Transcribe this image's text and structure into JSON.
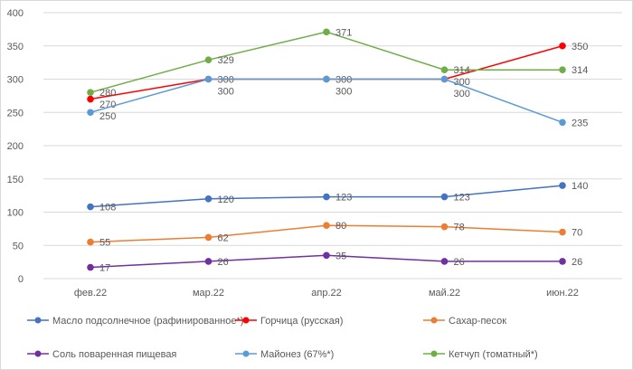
{
  "chart_data": {
    "type": "line",
    "title": "",
    "xlabel": "",
    "ylabel": "",
    "categories": [
      "фев.22",
      "мар.22",
      "апр.22",
      "май.22",
      "июн.22"
    ],
    "ylim": [
      0,
      400
    ],
    "yticks": [
      0,
      50,
      100,
      150,
      200,
      250,
      300,
      350,
      400
    ],
    "grid": true,
    "legend_position": "bottom",
    "series": [
      {
        "name": "Масло подсолнечное (рафинированное*)",
        "color": "#4472c4",
        "values": [
          108,
          120,
          123,
          123,
          140
        ]
      },
      {
        "name": "Горчица (русская)",
        "color": "#ff0000",
        "values": [
          270,
          300,
          300,
          300,
          350
        ]
      },
      {
        "name": "Сахар-песок",
        "color": "#ed7d31",
        "values": [
          55,
          62,
          80,
          78,
          70
        ]
      },
      {
        "name": "Соль поваренная пищевая",
        "color": "#7030a0",
        "values": [
          17,
          26,
          35,
          26,
          26
        ]
      },
      {
        "name": "Майонез (67%*)",
        "color": "#5b9bd5",
        "values": [
          250,
          300,
          300,
          300,
          235
        ]
      },
      {
        "name": "Кетчуп (томатный*)",
        "color": "#70ad47",
        "values": [
          280,
          329,
          371,
          314,
          314
        ]
      }
    ]
  }
}
